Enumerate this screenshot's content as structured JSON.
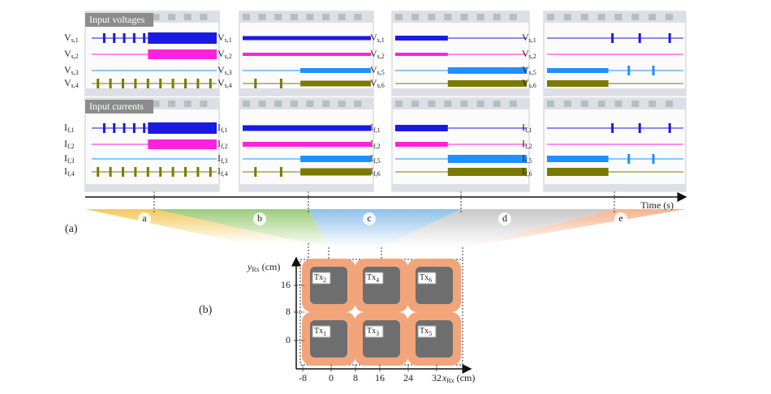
{
  "panel_a": {
    "label": "(a)",
    "time_axis": "Time (s)",
    "segments": [
      "a",
      "b",
      "c",
      "d",
      "e"
    ],
    "voltage_row": {
      "title": "Input voltages",
      "scopes": [
        [
          {
            "symbol": "V",
            "sub": "s,1"
          },
          {
            "symbol": "V",
            "sub": "s,2"
          },
          {
            "symbol": "V",
            "sub": "s,3"
          },
          {
            "symbol": "V",
            "sub": "s,4"
          }
        ],
        [
          {
            "symbol": "V",
            "sub": "s,1"
          },
          {
            "symbol": "V",
            "sub": "s,2"
          },
          {
            "symbol": "V",
            "sub": "s,3"
          },
          {
            "symbol": "V",
            "sub": "s,4"
          }
        ],
        [
          {
            "symbol": "V",
            "sub": "s,1"
          },
          {
            "symbol": "V",
            "sub": "s,2"
          },
          {
            "symbol": "V",
            "sub": "s,5"
          },
          {
            "symbol": "V",
            "sub": "s,6"
          }
        ],
        [
          {
            "symbol": "V",
            "sub": "s,1"
          },
          {
            "symbol": "V",
            "sub": "s,2"
          },
          {
            "symbol": "V",
            "sub": "s,5"
          },
          {
            "symbol": "V",
            "sub": "s,6"
          }
        ]
      ]
    },
    "current_row": {
      "title": "Input currents",
      "scopes": [
        [
          {
            "symbol": "I",
            "sub": "f,1"
          },
          {
            "symbol": "I",
            "sub": "f,2"
          },
          {
            "symbol": "I",
            "sub": "f,3"
          },
          {
            "symbol": "I",
            "sub": "f,4"
          }
        ],
        [
          {
            "symbol": "I",
            "sub": "f,1"
          },
          {
            "symbol": "I",
            "sub": "f,2"
          },
          {
            "symbol": "I",
            "sub": "f,3"
          },
          {
            "symbol": "I",
            "sub": "f,4"
          }
        ],
        [
          {
            "symbol": "I",
            "sub": "f,1"
          },
          {
            "symbol": "I",
            "sub": "f,2"
          },
          {
            "symbol": "I",
            "sub": "f,5"
          },
          {
            "symbol": "I",
            "sub": "f,6"
          }
        ],
        [
          {
            "symbol": "I",
            "sub": "f,1"
          },
          {
            "symbol": "I",
            "sub": "f,2"
          },
          {
            "symbol": "I",
            "sub": "f,5"
          },
          {
            "symbol": "I",
            "sub": "f,6"
          }
        ]
      ]
    }
  },
  "panel_b": {
    "label": "(b)",
    "y_axis": {
      "symbol": "y",
      "sub": "Rx",
      "unit": "(cm)"
    },
    "x_axis": {
      "symbol": "x",
      "sub": "Rx",
      "unit": "(cm)"
    },
    "xticks": [
      -8,
      0,
      8,
      16,
      24,
      32
    ],
    "yticks": [
      16,
      8,
      0
    ],
    "coils": [
      {
        "symbol": "Tx",
        "sub": "2"
      },
      {
        "symbol": "Tx",
        "sub": "4"
      },
      {
        "symbol": "Tx",
        "sub": "6"
      },
      {
        "symbol": "Tx",
        "sub": "1"
      },
      {
        "symbol": "Tx",
        "sub": "3"
      },
      {
        "symbol": "Tx",
        "sub": "5"
      }
    ]
  }
}
